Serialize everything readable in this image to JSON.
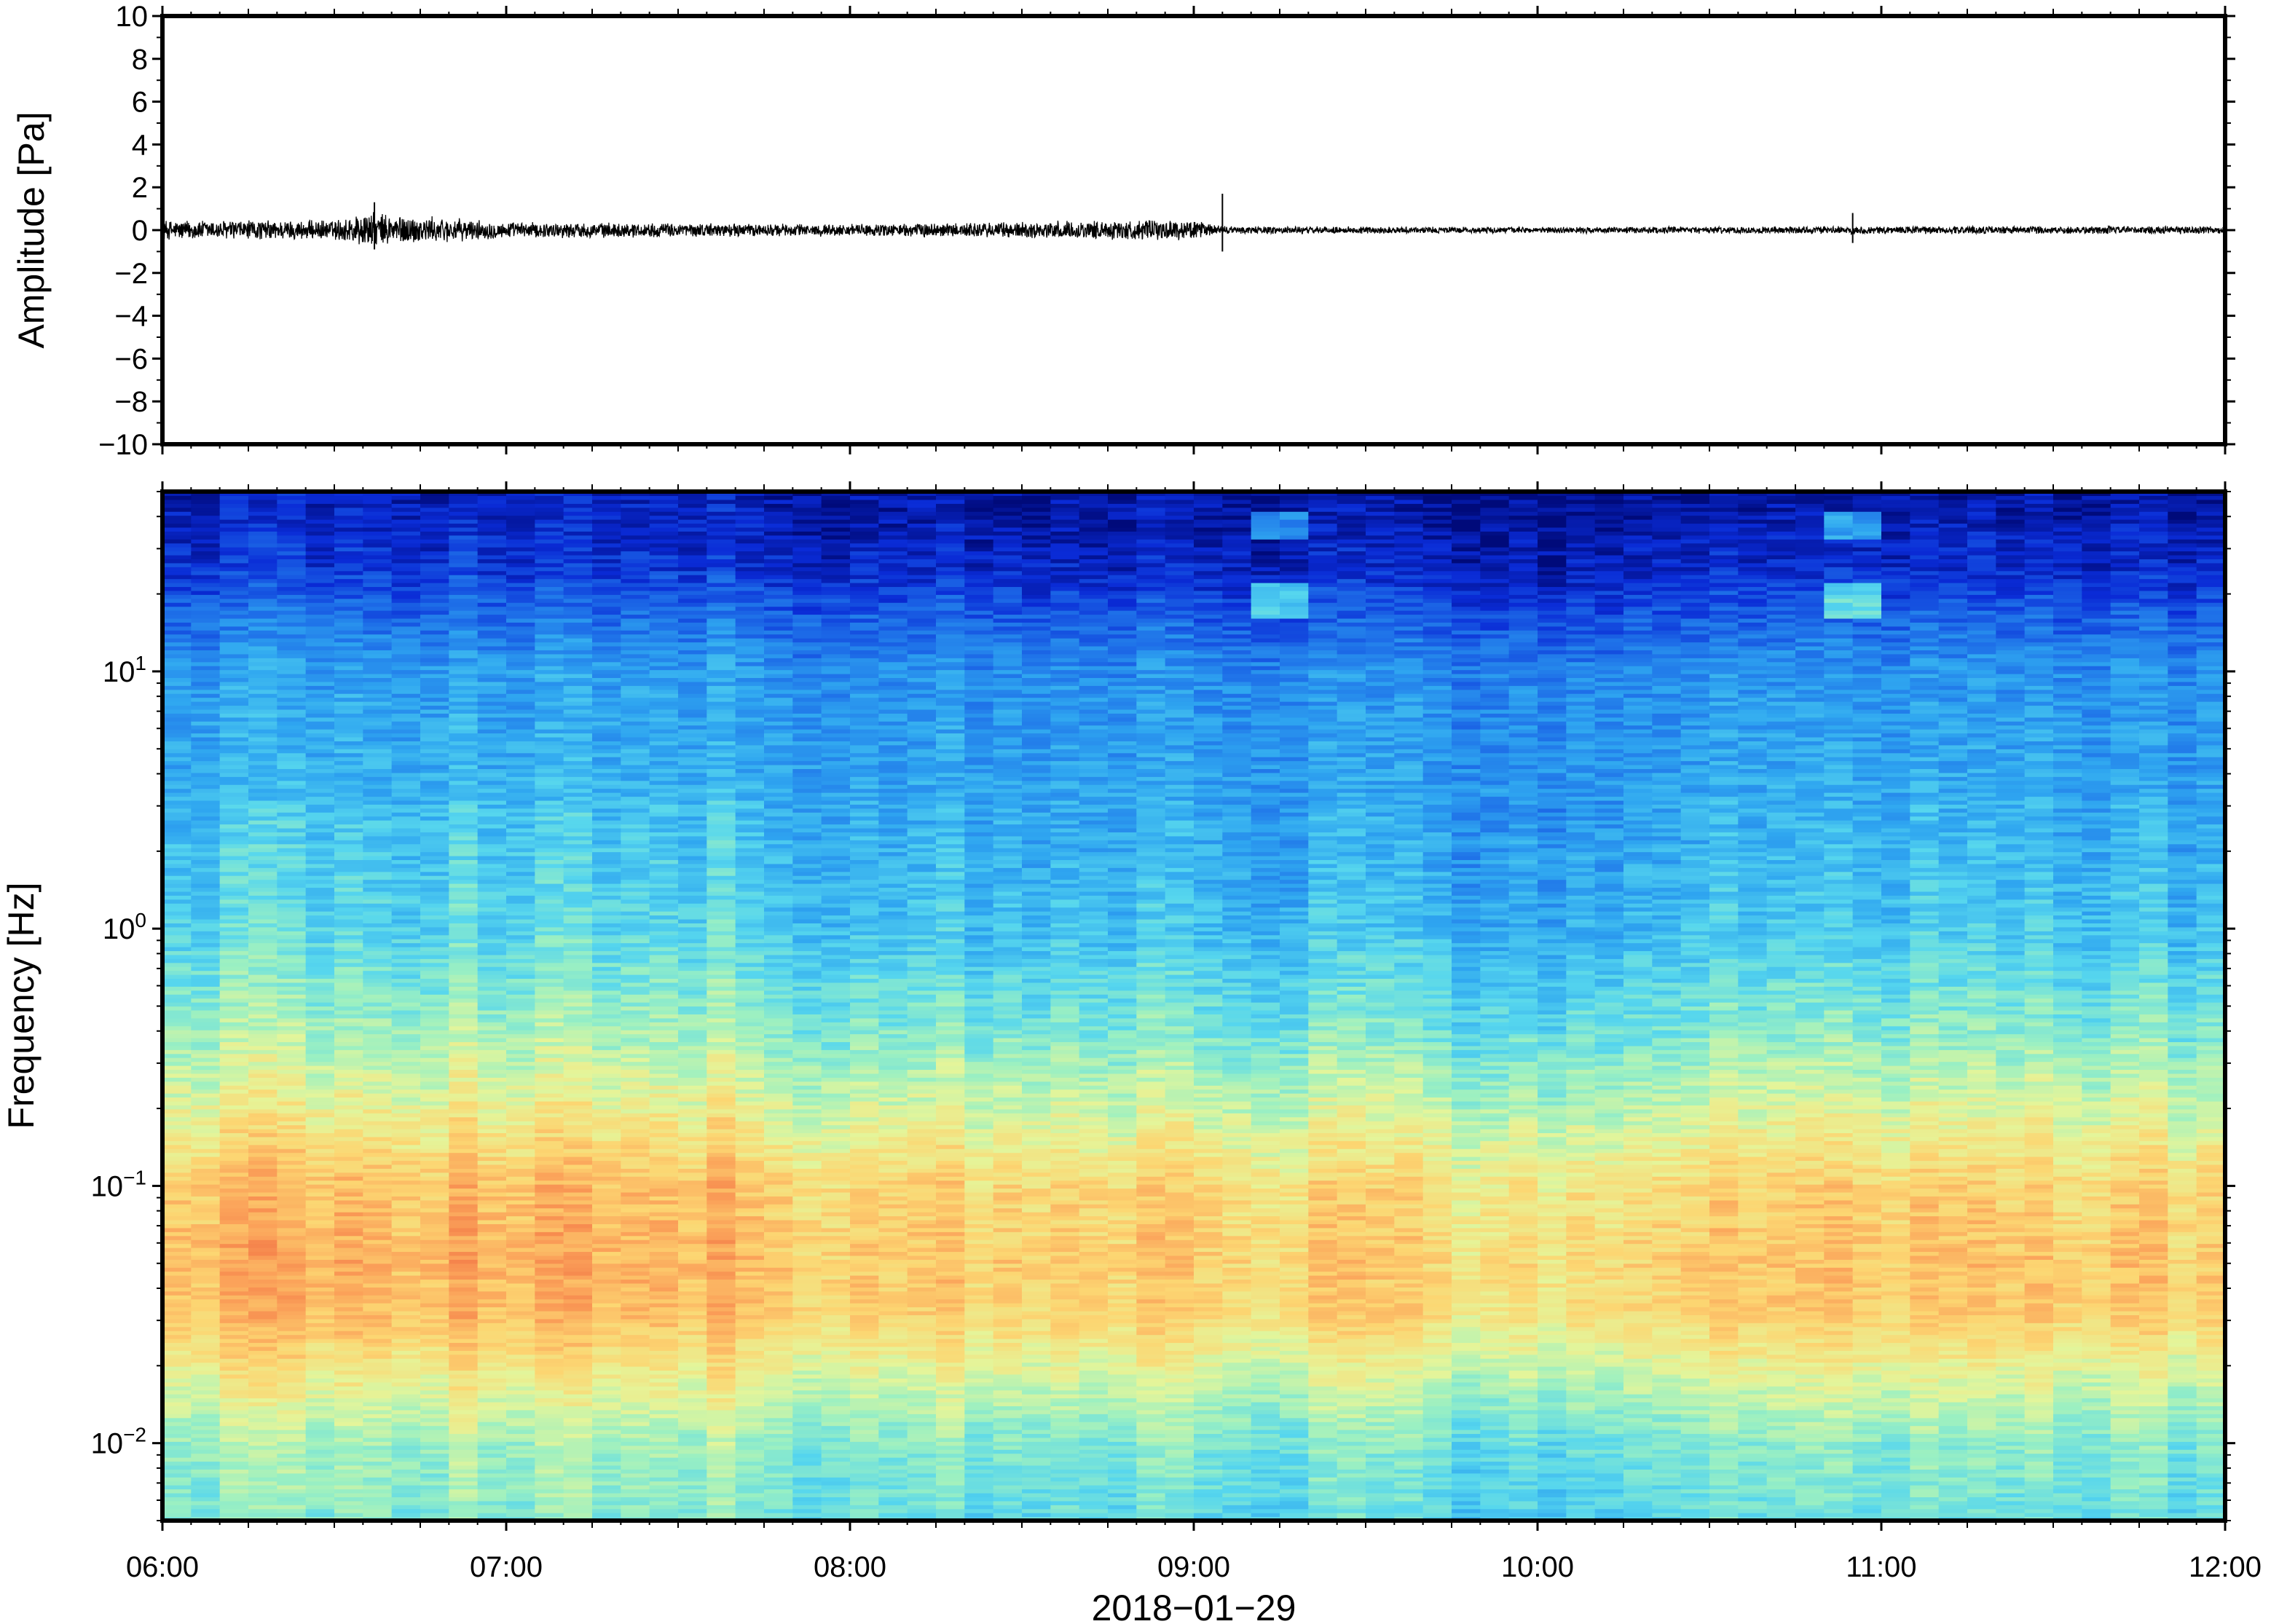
{
  "chart_data": [
    {
      "type": "line",
      "ylabel": "Amplitude [Pa]",
      "ylim": [
        -10,
        10
      ],
      "yticks": [
        "10",
        "8",
        "6",
        "4",
        "2",
        "0",
        "−2",
        "−4",
        "−6",
        "−8",
        "−10"
      ],
      "ytick_values": [
        10,
        8,
        6,
        4,
        2,
        0,
        -2,
        -4,
        -6,
        -8,
        -10
      ],
      "x_range": [
        "06:00",
        "12:00"
      ],
      "series": [
        {
          "values_description_free": true,
          "baseline": 0,
          "noise_envelope": [
            {
              "t": "06:00",
              "amp": 0.5
            },
            {
              "t": "06:30",
              "amp": 0.5
            },
            {
              "t": "06:35",
              "amp": 0.9
            },
            {
              "t": "07:00",
              "amp": 0.4
            },
            {
              "t": "08:00",
              "amp": 0.3
            },
            {
              "t": "08:50",
              "amp": 0.5
            },
            {
              "t": "09:00",
              "amp": 0.5
            },
            {
              "t": "09:05",
              "amp": 0.2
            },
            {
              "t": "10:00",
              "amp": 0.15
            },
            {
              "t": "11:00",
              "amp": 0.2
            },
            {
              "t": "12:00",
              "amp": 0.2
            }
          ],
          "spikes": [
            {
              "t": "06:37",
              "max": 1.3,
              "min": -0.9
            },
            {
              "t": "09:05",
              "max": 1.7,
              "min": -1.0
            },
            {
              "t": "10:55",
              "max": 0.8,
              "min": -0.6
            }
          ]
        }
      ],
      "grid": false
    },
    {
      "type": "heatmap",
      "ylabel": "Frequency [Hz]",
      "yscale": "log",
      "ylim": [
        0.005,
        50
      ],
      "yticks": [
        {
          "value": 10,
          "base": "10",
          "exp": "1"
        },
        {
          "value": 1,
          "base": "10",
          "exp": "0"
        },
        {
          "value": 0.1,
          "base": "10",
          "exp": "−1"
        },
        {
          "value": 0.01,
          "base": "10",
          "exp": "−2"
        }
      ],
      "xlabel": "2018−01−29",
      "xticks": [
        "06:00",
        "07:00",
        "08:00",
        "09:00",
        "10:00",
        "11:00",
        "12:00"
      ],
      "x_range": [
        "06:00",
        "12:00"
      ],
      "colormap": [
        "#000a7a",
        "#0a2bd6",
        "#1e6fe8",
        "#2fa6f0",
        "#56d6ee",
        "#9bf0c2",
        "#e4f59a",
        "#fcd672",
        "#fba35a",
        "#f06a40"
      ],
      "grid": false
    }
  ]
}
